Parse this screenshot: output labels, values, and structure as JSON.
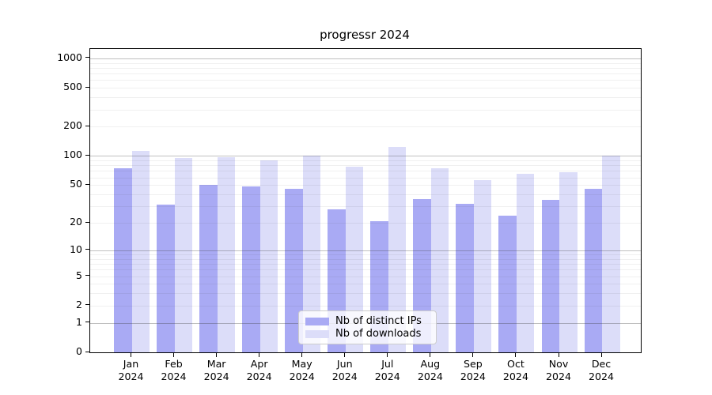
{
  "figure": {
    "title": "progressr 2024"
  },
  "chart_data": {
    "type": "bar",
    "title": "progressr 2024",
    "yscale": "log1p",
    "ylim": [
      0,
      1250
    ],
    "y_ticks": [
      0,
      1,
      2,
      5,
      10,
      20,
      50,
      100,
      200,
      500,
      1000
    ],
    "grid": "horizontal, minor + major (decades darker), drawn over bars",
    "legend_position": "lower center",
    "x_categories": [
      "Jan",
      "Feb",
      "Mar",
      "Apr",
      "May",
      "Jun",
      "Jul",
      "Aug",
      "Sep",
      "Oct",
      "Nov",
      "Dec"
    ],
    "x_year": "2024",
    "series": [
      {
        "name": "Nb of distinct IPs",
        "color": "#a9aaf4",
        "values": [
          75,
          31,
          50,
          48,
          46,
          28,
          21,
          36,
          32,
          24,
          35,
          46
        ]
      },
      {
        "name": "Nb of downloads",
        "color": "#dcddf9",
        "values": [
          113,
          95,
          97,
          90,
          101,
          77,
          125,
          75,
          56,
          66,
          68,
          100
        ]
      }
    ]
  },
  "colors": {
    "major_grid": "rgba(60,60,60,0.32)",
    "minor_grid": "rgba(60,60,60,0.075)",
    "spine": "#000000",
    "legend_border": "#cccccc",
    "legend_bg": "rgba(255,255,255,0.8)"
  }
}
